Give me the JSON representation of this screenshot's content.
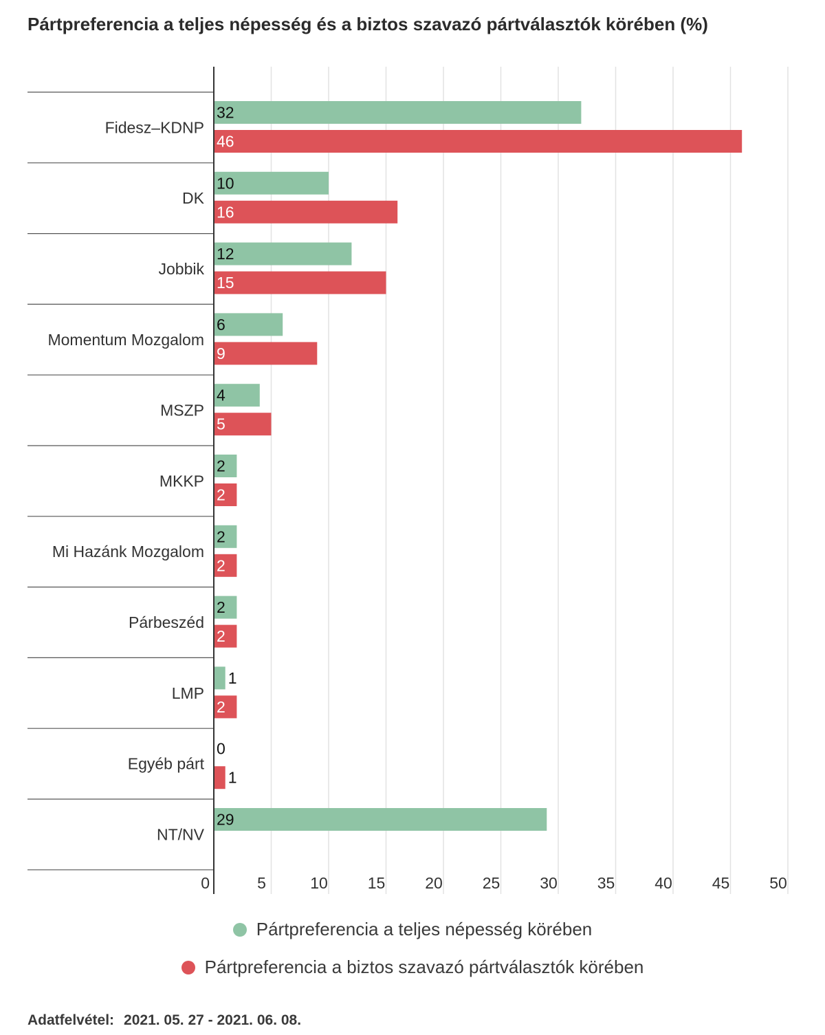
{
  "chart_data": {
    "type": "bar",
    "orientation": "horizontal",
    "title": "Pártpreferencia a teljes népesség és a biztos szavazó pártválasztók körében (%)",
    "categories": [
      "Fidesz–KDNP",
      "DK",
      "Jobbik",
      "Momentum Mozgalom",
      "MSZP",
      "MKKP",
      "Mi Hazánk Mozgalom",
      "Párbeszéd",
      "LMP",
      "Egyéb párt",
      "NT/NV"
    ],
    "series": [
      {
        "name": "Pártpreferencia a teljes népesség körében",
        "color": "#8fc4a5",
        "values": [
          32,
          10,
          12,
          6,
          4,
          2,
          2,
          2,
          1,
          0,
          29
        ]
      },
      {
        "name": "Pártpreferencia a biztos szavazó pártválasztók körében",
        "color": "#dd5358",
        "values": [
          46,
          16,
          15,
          9,
          5,
          2,
          2,
          2,
          2,
          1,
          null
        ]
      }
    ],
    "xlim": [
      0,
      50
    ],
    "xticks": [
      0,
      5,
      10,
      15,
      20,
      25,
      30,
      35,
      40,
      45,
      50
    ],
    "grid": true,
    "legend_position": "bottom"
  },
  "footer": {
    "label": "Adatfelvétel:",
    "value": "2021. 05. 27 - 2021. 06. 08."
  }
}
